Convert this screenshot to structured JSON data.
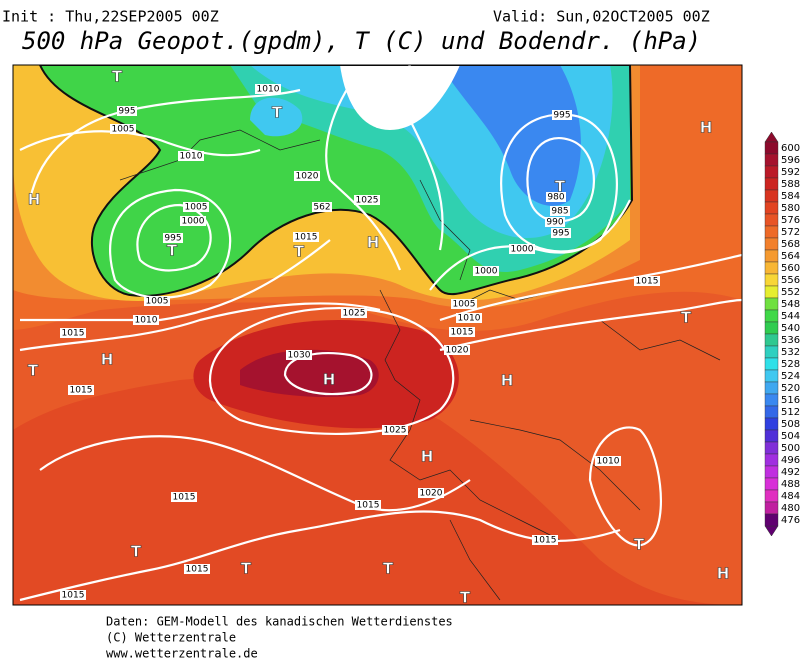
{
  "header": {
    "init": "Init : Thu,22SEP2005 00Z",
    "valid": "Valid: Sun,02OCT2005 00Z",
    "title": "500 hPa Geopot.(gpdm), T (C) und Bodendr. (hPa)"
  },
  "map": {
    "isobar_labels": [
      "995",
      "1005",
      "1010",
      "1010",
      "1020",
      "1025",
      "1005",
      "1000",
      "995",
      "1015",
      "1005",
      "1010",
      "1015",
      "1015",
      "1025",
      "1030",
      "1025",
      "1020",
      "1015",
      "1015",
      "1015",
      "1015",
      "1015",
      "1010",
      "1015",
      "1020",
      "1015",
      "1010",
      "1005",
      "1000",
      "1000",
      "995",
      "990",
      "985",
      "980",
      "995",
      "562"
    ],
    "pressure_centers": [
      "T",
      "T",
      "H",
      "T",
      "T",
      "H",
      "T",
      "H",
      "T",
      "H",
      "T",
      "H",
      "H",
      "H",
      "T",
      "T",
      "T",
      "T",
      "H",
      "T"
    ]
  },
  "colorbar": {
    "values": [
      600,
      596,
      592,
      588,
      584,
      580,
      576,
      572,
      568,
      564,
      560,
      556,
      552,
      548,
      544,
      540,
      536,
      532,
      528,
      524,
      520,
      516,
      512,
      508,
      504,
      500,
      496,
      492,
      488,
      484,
      480,
      476
    ],
    "colors": [
      "#8c0a2c",
      "#a5122e",
      "#bb1a28",
      "#cc2420",
      "#d83420",
      "#e24422",
      "#e85426",
      "#ee6a28",
      "#f2802c",
      "#f59a30",
      "#f8b634",
      "#f8d636",
      "#e6ee30",
      "#70e040",
      "#40d848",
      "#30cc50",
      "#30c890",
      "#30d0c0",
      "#30e0e8",
      "#40c8f0",
      "#40a8f0",
      "#3a88f0",
      "#3468e8",
      "#3040e0",
      "#5030d8",
      "#8030d8",
      "#a030e0",
      "#c030e0",
      "#d830d8",
      "#e030c0",
      "#c020a0",
      "#600070"
    ]
  },
  "footer": {
    "lines": [
      "Daten: GEM-Modell des kanadischen Wetterdienstes",
      "(C) Wetterzentrale",
      "www.wetterzentrale.de"
    ]
  }
}
